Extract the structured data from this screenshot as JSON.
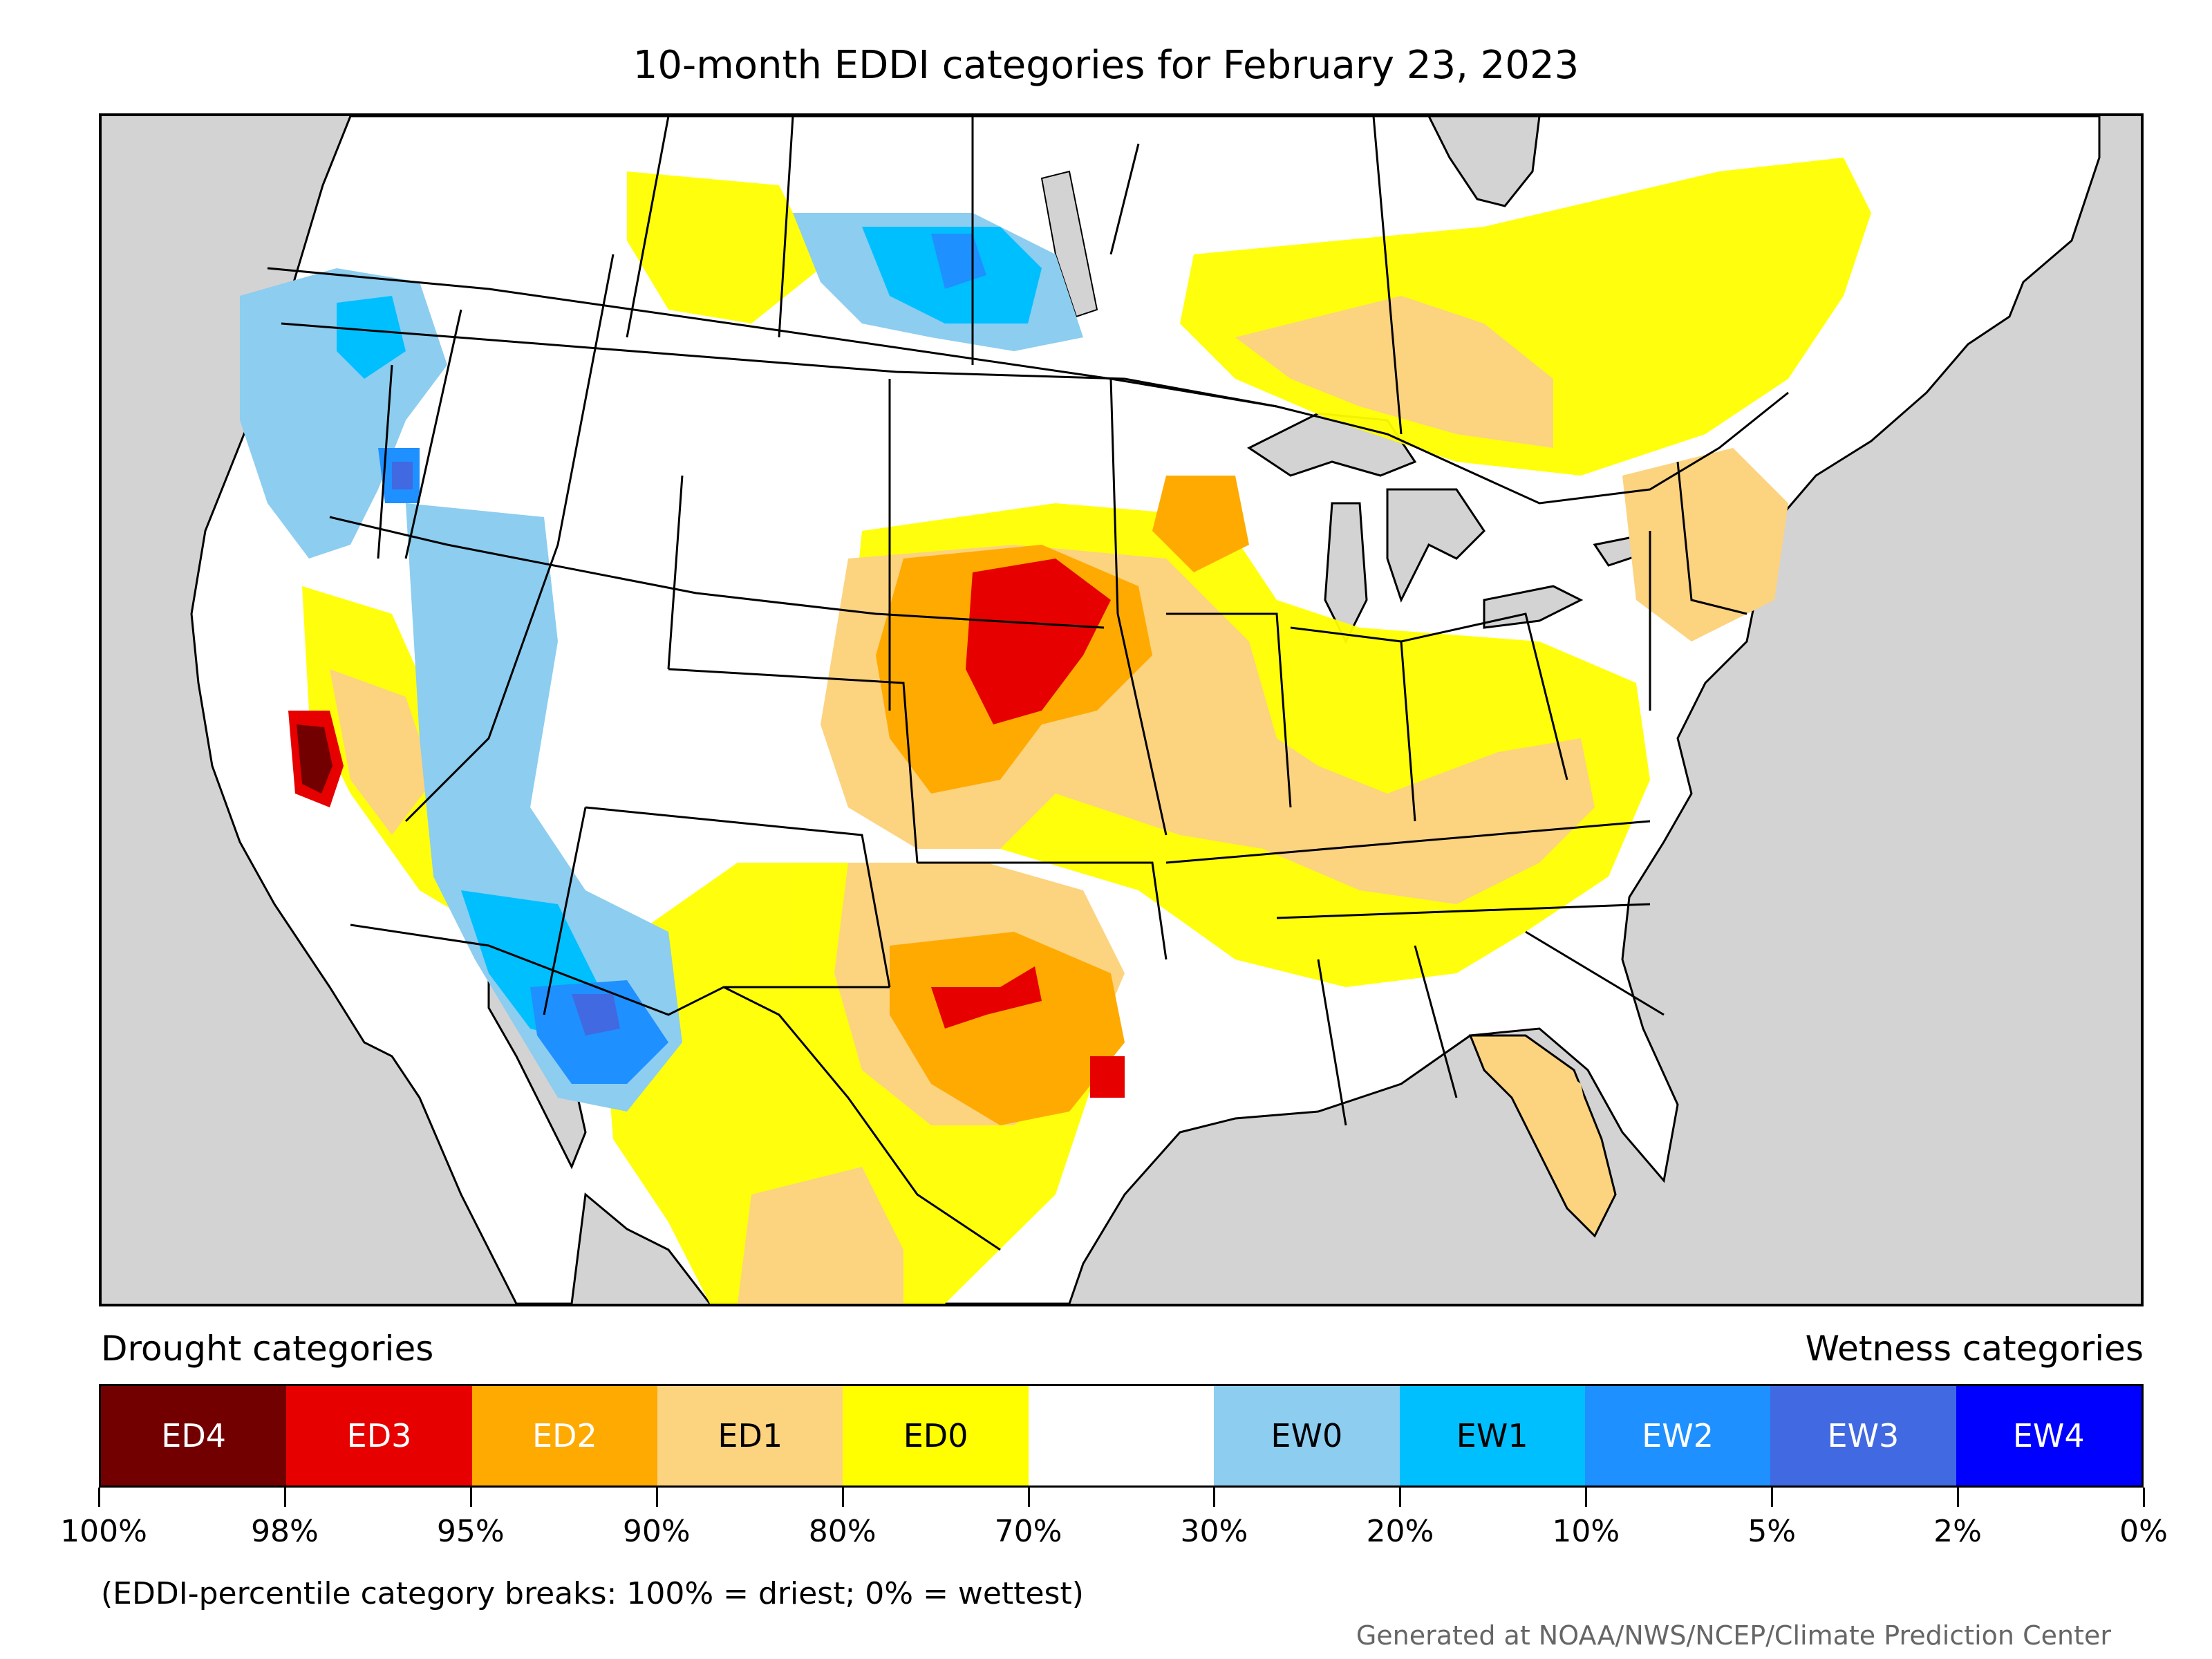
{
  "title": "10-month EDDI categories for February 23, 2023",
  "legend": {
    "left_heading": "Drought categories",
    "right_heading": "Wetness categories",
    "categories": [
      {
        "label": "ED4",
        "color": "#730000",
        "text_color": "#ffffff"
      },
      {
        "label": "ED3",
        "color": "#e60000",
        "text_color": "#ffffff"
      },
      {
        "label": "ED2",
        "color": "#ffaa00",
        "text_color": "#ffffff"
      },
      {
        "label": "ED1",
        "color": "#fcd37f",
        "text_color": "#000000"
      },
      {
        "label": "ED0",
        "color": "#ffff00",
        "text_color": "#000000"
      },
      {
        "label": "",
        "color": "#ffffff",
        "text_color": "#000000"
      },
      {
        "label": "EW0",
        "color": "#8ccdf0",
        "text_color": "#000000"
      },
      {
        "label": "EW1",
        "color": "#00bfff",
        "text_color": "#000000"
      },
      {
        "label": "EW2",
        "color": "#1e90ff",
        "text_color": "#ffffff"
      },
      {
        "label": "EW3",
        "color": "#4169e1",
        "text_color": "#ffffff"
      },
      {
        "label": "EW4",
        "color": "#0000ff",
        "text_color": "#ffffff"
      }
    ],
    "tick_labels": [
      "100%",
      "98%",
      "95%",
      "90%",
      "80%",
      "70%",
      "30%",
      "20%",
      "10%",
      "5%",
      "2%",
      "0%"
    ]
  },
  "footnote": "(EDDI-percentile category breaks: 100% = driest; 0% = wettest)",
  "credit": "Generated at NOAA/NWS/NCEP/Climate Prediction Center",
  "map": {
    "ocean_color": "#d3d3d3",
    "land_color": "#ffffff",
    "border_color": "#000000"
  }
}
